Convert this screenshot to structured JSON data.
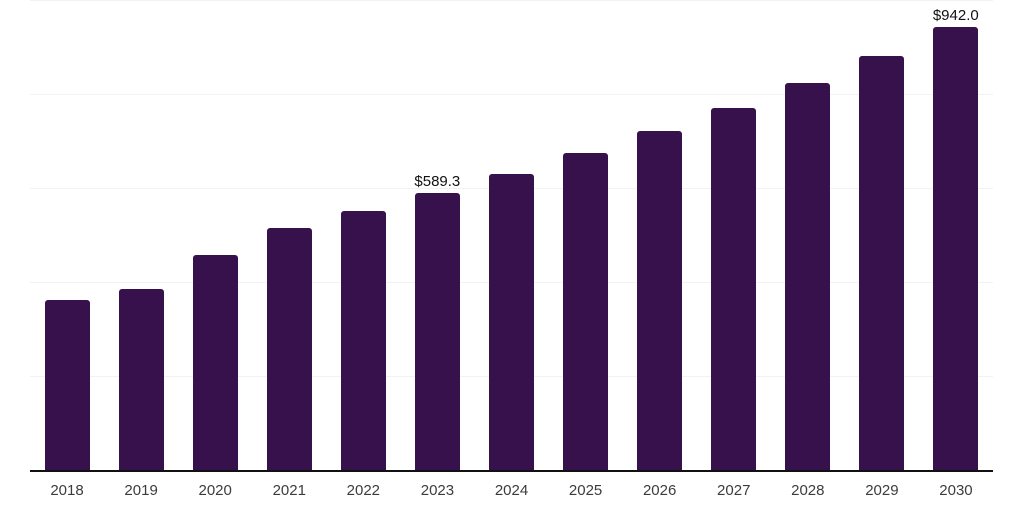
{
  "colors": {
    "bar": "#36114c",
    "gridline": "#f2f2f2",
    "axis_line": "#111111",
    "tick_label": "#3c3c3c",
    "data_label": "#111111",
    "background": "#ffffff"
  },
  "chart_data": {
    "type": "bar",
    "title": "",
    "xlabel": "",
    "ylabel": "",
    "categories": [
      "2018",
      "2019",
      "2020",
      "2021",
      "2022",
      "2023",
      "2024",
      "2025",
      "2026",
      "2027",
      "2028",
      "2029",
      "2030"
    ],
    "values": [
      362.4,
      385.6,
      457.0,
      515.5,
      551.1,
      589.3,
      630.1,
      673.8,
      720.5,
      770.4,
      823.8,
      880.9,
      942.0
    ],
    "data_labels": [
      "",
      "",
      "",
      "",
      "",
      "$589.3",
      "",
      "",
      "",
      "",
      "",
      "",
      "$942.0"
    ],
    "ylim": [
      0,
      1000
    ],
    "gridline_values": [
      200,
      400,
      600,
      800,
      1000
    ],
    "grid": "horizontal-only",
    "legend": "none",
    "y_axis_labels_visible": false
  }
}
